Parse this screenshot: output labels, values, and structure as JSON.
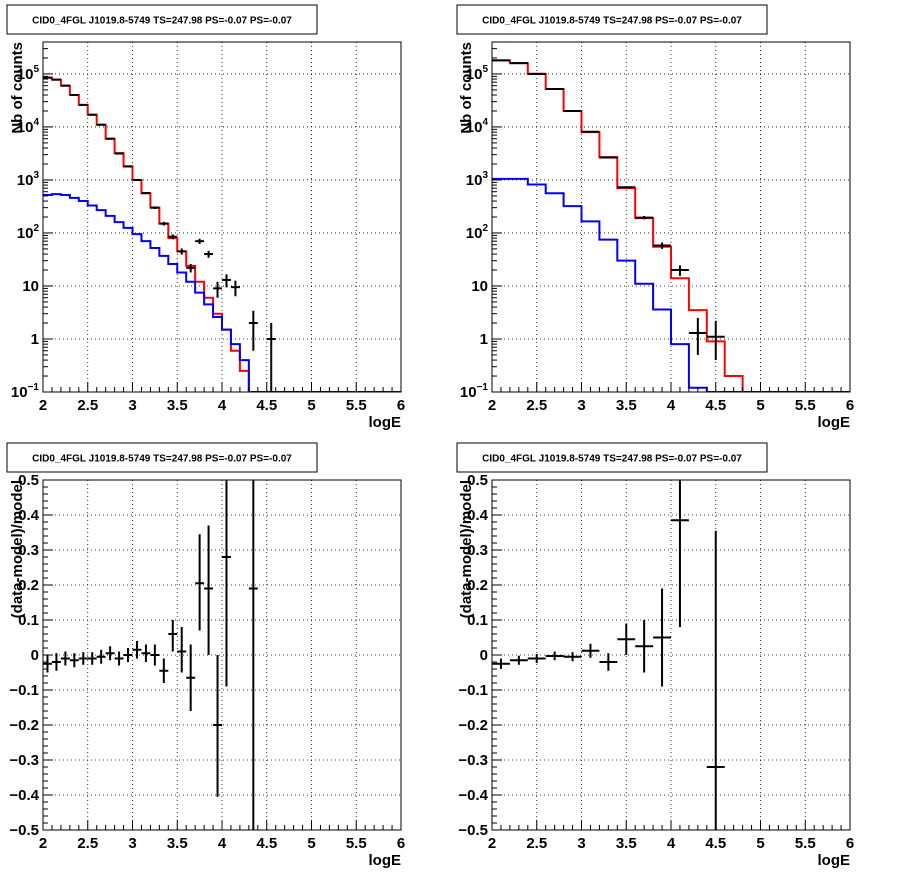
{
  "chart_data": [
    {
      "type": "line",
      "title": "CID0_4FGL J1019.8-5749 TS=247.98 PS=-0.07 PS=-0.07",
      "xlabel": "logE",
      "ylabel": "Nb of counts",
      "xlim": [
        2,
        6
      ],
      "ylim": [
        0.1,
        400000
      ],
      "log_y": true,
      "grid": true,
      "x_ticks": [
        "2",
        "2.5",
        "3",
        "3.5",
        "4",
        "4.5",
        "5",
        "5.5",
        "6"
      ],
      "y_ticks": [
        {
          "value": 0.1,
          "base": "10",
          "exp": "−1"
        },
        {
          "value": 1,
          "text": "1"
        },
        {
          "value": 10,
          "text": "10"
        },
        {
          "value": 100,
          "base": "10",
          "exp": "2"
        },
        {
          "value": 1000,
          "base": "10",
          "exp": "3"
        },
        {
          "value": 10000,
          "base": "10",
          "exp": "4"
        },
        {
          "value": 100000,
          "base": "10",
          "exp": "5"
        }
      ],
      "bin_edges": [
        2.0,
        2.1,
        2.2,
        2.3,
        2.4,
        2.5,
        2.6,
        2.7,
        2.8,
        2.9,
        3.0,
        3.1,
        3.2,
        3.3,
        3.4,
        3.5,
        3.6,
        3.7,
        3.8,
        3.9,
        4.0,
        4.1,
        4.2,
        4.3,
        4.4,
        4.5,
        4.6,
        4.7,
        4.8,
        4.9,
        5.0,
        5.1,
        5.2,
        5.3,
        5.4,
        5.5,
        5.6,
        5.7,
        5.8,
        5.9,
        6.0
      ],
      "series": [
        {
          "color": "#ff0000",
          "kind": "step",
          "values": [
            85000,
            78000,
            60000,
            40000,
            26000,
            17000,
            11000,
            6000,
            3200,
            1800,
            1000,
            560,
            300,
            150,
            80,
            45,
            24,
            12,
            6,
            3,
            1.5,
            0.6,
            0.25,
            0.1,
            0.08,
            0.08,
            0.08,
            0.08,
            0.08,
            0.08,
            0.08,
            0.08,
            0.08,
            0.08,
            0.08,
            0.08,
            0.08,
            0.08,
            0.08,
            0.08
          ]
        },
        {
          "color": "#0000ff",
          "kind": "step",
          "values": [
            520,
            540,
            520,
            460,
            400,
            330,
            270,
            210,
            160,
            125,
            95,
            70,
            52,
            37,
            26,
            18,
            12,
            7.5,
            4.5,
            2.6,
            1.5,
            0.8,
            0.4,
            0.1,
            0.08,
            0.08,
            0.08,
            0.08,
            0.08,
            0.08,
            0.08,
            0.08,
            0.08,
            0.08,
            0.08,
            0.08,
            0.08,
            0.08,
            0.08,
            0.08
          ]
        },
        {
          "color": "#000000",
          "kind": "points",
          "points": [
            {
              "x": 2.05,
              "y": 85000,
              "ylo": 84400,
              "yhi": 85600
            },
            {
              "x": 2.15,
              "y": 78000,
              "ylo": 77400,
              "yhi": 78600
            },
            {
              "x": 2.25,
              "y": 60000,
              "ylo": 59500,
              "yhi": 60500
            },
            {
              "x": 2.35,
              "y": 40000,
              "ylo": 39600,
              "yhi": 40400
            },
            {
              "x": 2.45,
              "y": 26000,
              "ylo": 25700,
              "yhi": 26300
            },
            {
              "x": 2.55,
              "y": 17000,
              "ylo": 16800,
              "yhi": 17200
            },
            {
              "x": 2.65,
              "y": 11000,
              "ylo": 10900,
              "yhi": 11100
            },
            {
              "x": 2.75,
              "y": 6000,
              "ylo": 5920,
              "yhi": 6080
            },
            {
              "x": 2.85,
              "y": 3150,
              "ylo": 3090,
              "yhi": 3210
            },
            {
              "x": 2.95,
              "y": 1800,
              "ylo": 1760,
              "yhi": 1840
            },
            {
              "x": 3.05,
              "y": 1000,
              "ylo": 970,
              "yhi": 1030
            },
            {
              "x": 3.15,
              "y": 565,
              "ylo": 540,
              "yhi": 590
            },
            {
              "x": 3.25,
              "y": 300,
              "ylo": 283,
              "yhi": 317
            },
            {
              "x": 3.35,
              "y": 150,
              "ylo": 138,
              "yhi": 162
            },
            {
              "x": 3.45,
              "y": 85,
              "ylo": 76,
              "yhi": 94
            },
            {
              "x": 3.55,
              "y": 45,
              "ylo": 39,
              "yhi": 51
            },
            {
              "x": 3.65,
              "y": 22,
              "ylo": 18,
              "yhi": 26
            },
            {
              "x": 3.75,
              "y": 70,
              "ylo": 62,
              "yhi": 78
            },
            {
              "x": 3.85,
              "y": 40,
              "ylo": 34,
              "yhi": 46
            },
            {
              "x": 3.95,
              "y": 9,
              "ylo": 6,
              "yhi": 12
            },
            {
              "x": 4.05,
              "y": 13,
              "ylo": 9.4,
              "yhi": 16.6
            },
            {
              "x": 4.15,
              "y": 9.5,
              "ylo": 6.4,
              "yhi": 12.6
            },
            {
              "x": 4.35,
              "y": 2,
              "ylo": 0.6,
              "yhi": 3.4
            },
            {
              "x": 4.55,
              "y": 1,
              "ylo": 0.1,
              "yhi": 2.0
            }
          ]
        }
      ]
    },
    {
      "type": "line",
      "title": "CID0_4FGL J1019.8-5749 TS=247.98 PS=-0.07 PS=-0.07",
      "xlabel": "logE",
      "ylabel": "Nb of counts",
      "xlim": [
        2,
        6
      ],
      "ylim": [
        0.1,
        400000
      ],
      "log_y": true,
      "grid": true,
      "x_ticks": [
        "2",
        "2.5",
        "3",
        "3.5",
        "4",
        "4.5",
        "5",
        "5.5",
        "6"
      ],
      "y_ticks": [
        {
          "value": 0.1,
          "base": "10",
          "exp": "−1"
        },
        {
          "value": 1,
          "text": "1"
        },
        {
          "value": 10,
          "text": "10"
        },
        {
          "value": 100,
          "base": "10",
          "exp": "2"
        },
        {
          "value": 1000,
          "base": "10",
          "exp": "3"
        },
        {
          "value": 10000,
          "base": "10",
          "exp": "4"
        },
        {
          "value": 100000,
          "base": "10",
          "exp": "5"
        }
      ],
      "bin_edges": [
        2.0,
        2.2,
        2.4,
        2.6,
        2.8,
        3.0,
        3.2,
        3.4,
        3.6,
        3.8,
        4.0,
        4.2,
        4.4,
        4.6,
        4.8,
        5.0,
        5.2,
        5.4,
        5.6,
        5.8,
        6.0
      ],
      "series": [
        {
          "color": "#ff0000",
          "kind": "step",
          "values": [
            180000,
            160000,
            100000,
            52000,
            20000,
            8000,
            2700,
            700,
            190,
            55,
            14,
            3.5,
            0.9,
            0.2,
            0.08,
            0.08,
            0.08,
            0.08,
            0.08,
            0.08
          ]
        },
        {
          "color": "#0000ff",
          "kind": "step",
          "values": [
            1050,
            1050,
            820,
            560,
            320,
            165,
            75,
            30,
            11,
            3.6,
            0.8,
            0.12,
            0.08,
            0.08,
            0.08,
            0.08,
            0.08,
            0.08,
            0.08,
            0.08
          ]
        },
        {
          "color": "#000000",
          "kind": "points",
          "points": [
            {
              "x": 2.1,
              "y": 180000,
              "ylo": 179500,
              "yhi": 180500
            },
            {
              "x": 2.3,
              "y": 160000,
              "ylo": 159500,
              "yhi": 160500
            },
            {
              "x": 2.5,
              "y": 100000,
              "ylo": 99700,
              "yhi": 100300
            },
            {
              "x": 2.7,
              "y": 52000,
              "ylo": 51800,
              "yhi": 52200
            },
            {
              "x": 2.9,
              "y": 20000,
              "ylo": 19860,
              "yhi": 20140
            },
            {
              "x": 3.1,
              "y": 8100,
              "ylo": 8010,
              "yhi": 8190
            },
            {
              "x": 3.3,
              "y": 2650,
              "ylo": 2600,
              "yhi": 2700
            },
            {
              "x": 3.5,
              "y": 730,
              "ylo": 703,
              "yhi": 757
            },
            {
              "x": 3.7,
              "y": 195,
              "ylo": 181,
              "yhi": 209
            },
            {
              "x": 3.9,
              "y": 58,
              "ylo": 50,
              "yhi": 66
            },
            {
              "x": 4.1,
              "y": 20,
              "ylo": 15.5,
              "yhi": 24.5
            },
            {
              "x": 4.3,
              "y": 1.3,
              "ylo": 0.5,
              "yhi": 2.5
            },
            {
              "x": 4.5,
              "y": 1.1,
              "ylo": 0.4,
              "yhi": 2.2
            }
          ]
        }
      ]
    },
    {
      "type": "scatter",
      "title": "CID0_4FGL J1019.8-5749 TS=247.98 PS=-0.07 PS=-0.07",
      "xlabel": "logE",
      "ylabel": "(data-model)/model",
      "xlim": [
        2,
        6
      ],
      "ylim": [
        -0.5,
        0.5
      ],
      "grid": true,
      "x_ticks": [
        "2",
        "2.5",
        "3",
        "3.5",
        "4",
        "4.5",
        "5",
        "5.5",
        "6"
      ],
      "y_ticks": [
        "0.5",
        "0.4",
        "0.3",
        "0.2",
        "0.1",
        "0",
        "−0.1",
        "−0.2",
        "−0.3",
        "−0.4",
        "−0.5"
      ],
      "points": [
        {
          "x": 2.05,
          "y": -0.025,
          "ylo": -0.05,
          "yhi": 0.0
        },
        {
          "x": 2.15,
          "y": -0.02,
          "ylo": -0.045,
          "yhi": 0.005
        },
        {
          "x": 2.25,
          "y": -0.01,
          "ylo": -0.03,
          "yhi": 0.01
        },
        {
          "x": 2.35,
          "y": -0.015,
          "ylo": -0.035,
          "yhi": 0.005
        },
        {
          "x": 2.45,
          "y": -0.01,
          "ylo": -0.028,
          "yhi": 0.008
        },
        {
          "x": 2.55,
          "y": -0.01,
          "ylo": -0.028,
          "yhi": 0.008
        },
        {
          "x": 2.65,
          "y": -0.005,
          "ylo": -0.025,
          "yhi": 0.015
        },
        {
          "x": 2.75,
          "y": 0.005,
          "ylo": -0.015,
          "yhi": 0.025
        },
        {
          "x": 2.85,
          "y": -0.01,
          "ylo": -0.03,
          "yhi": 0.01
        },
        {
          "x": 2.95,
          "y": 0.0,
          "ylo": -0.02,
          "yhi": 0.02
        },
        {
          "x": 3.05,
          "y": 0.015,
          "ylo": -0.01,
          "yhi": 0.04
        },
        {
          "x": 3.15,
          "y": 0.005,
          "ylo": -0.02,
          "yhi": 0.03
        },
        {
          "x": 3.25,
          "y": 0.0,
          "ylo": -0.03,
          "yhi": 0.03
        },
        {
          "x": 3.35,
          "y": -0.045,
          "ylo": -0.08,
          "yhi": -0.01
        },
        {
          "x": 3.45,
          "y": 0.06,
          "ylo": 0.01,
          "yhi": 0.1
        },
        {
          "x": 3.55,
          "y": 0.01,
          "ylo": -0.05,
          "yhi": 0.08
        },
        {
          "x": 3.65,
          "y": -0.065,
          "ylo": -0.16,
          "yhi": 0.03
        },
        {
          "x": 3.75,
          "y": 0.205,
          "ylo": 0.07,
          "yhi": 0.345
        },
        {
          "x": 3.85,
          "y": 0.19,
          "ylo": 0.0,
          "yhi": 0.37
        },
        {
          "x": 3.95,
          "y": -0.2,
          "ylo": -0.405,
          "yhi": 0.0
        },
        {
          "x": 4.05,
          "y": 0.28,
          "ylo": -0.09,
          "yhi": 0.5
        },
        {
          "x": 4.35,
          "y": 0.19,
          "ylo": -0.5,
          "yhi": 0.5
        }
      ]
    },
    {
      "type": "scatter",
      "title": "CID0_4FGL J1019.8-5749 TS=247.98 PS=-0.07 PS=-0.07",
      "xlabel": "logE",
      "ylabel": "(data-model)/model",
      "xlim": [
        2,
        6
      ],
      "ylim": [
        -0.5,
        0.5
      ],
      "grid": true,
      "x_ticks": [
        "2",
        "2.5",
        "3",
        "3.5",
        "4",
        "4.5",
        "5",
        "5.5",
        "6"
      ],
      "y_ticks": [
        "0.5",
        "0.4",
        "0.3",
        "0.2",
        "0.1",
        "0",
        "−0.1",
        "−0.2",
        "−0.3",
        "−0.4",
        "−0.5"
      ],
      "points": [
        {
          "x": 2.1,
          "y": -0.025,
          "ylo": -0.04,
          "yhi": -0.01
        },
        {
          "x": 2.3,
          "y": -0.015,
          "ylo": -0.028,
          "yhi": -0.002
        },
        {
          "x": 2.5,
          "y": -0.01,
          "ylo": -0.023,
          "yhi": 0.003
        },
        {
          "x": 2.7,
          "y": -0.003,
          "ylo": -0.015,
          "yhi": 0.01
        },
        {
          "x": 2.9,
          "y": -0.005,
          "ylo": -0.018,
          "yhi": 0.008
        },
        {
          "x": 3.1,
          "y": 0.012,
          "ylo": -0.008,
          "yhi": 0.032
        },
        {
          "x": 3.3,
          "y": -0.02,
          "ylo": -0.045,
          "yhi": 0.005
        },
        {
          "x": 3.5,
          "y": 0.045,
          "ylo": 0.0,
          "yhi": 0.09
        },
        {
          "x": 3.7,
          "y": 0.025,
          "ylo": -0.05,
          "yhi": 0.1
        },
        {
          "x": 3.9,
          "y": 0.05,
          "ylo": -0.09,
          "yhi": 0.19
        },
        {
          "x": 4.1,
          "y": 0.385,
          "ylo": 0.08,
          "yhi": 0.5
        },
        {
          "x": 4.5,
          "y": -0.32,
          "ylo": -0.5,
          "yhi": 0.355
        }
      ]
    }
  ]
}
